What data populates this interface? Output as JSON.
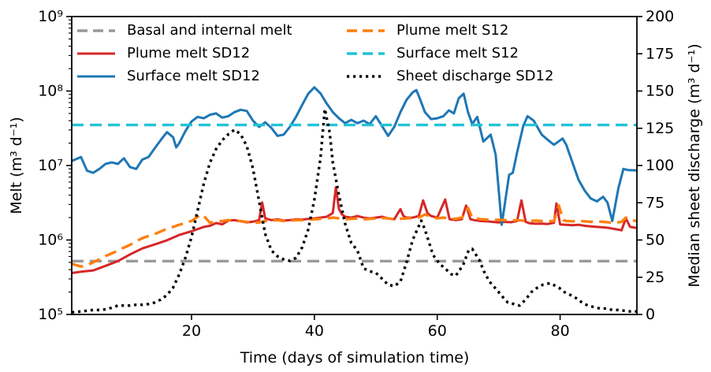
{
  "chart_data": {
    "type": "line",
    "title": "",
    "x_axis": {
      "label": "Time (days of simulation time)",
      "range": [
        0.5,
        92.5
      ],
      "ticks": [
        20,
        40,
        60,
        80
      ]
    },
    "left_axis": {
      "label": "Melt (m³ d⁻¹)",
      "scale": "log",
      "range": [
        100000.0,
        1000000000.0
      ],
      "ticks": [
        {
          "label": "10⁵",
          "value": 100000.0
        },
        {
          "label": "10⁶",
          "value": 1000000.0
        },
        {
          "label": "10⁷",
          "value": 10000000.0
        },
        {
          "label": "10⁸",
          "value": 100000000.0
        },
        {
          "label": "10⁹",
          "value": 1000000000.0
        }
      ]
    },
    "right_axis": {
      "label": "Median sheet discharge (m³ d⁻¹)",
      "scale": "linear",
      "range": [
        0,
        200
      ],
      "ticks": [
        0,
        25,
        50,
        75,
        100,
        125,
        150,
        175,
        200
      ]
    },
    "grid": false,
    "legend_position": "upper-inside-two-columns",
    "series": [
      {
        "key": "basal",
        "label": "Basal and internal melt",
        "color": "#999999",
        "style": "dashed",
        "axis": "left",
        "x": [
          0.5,
          92.5
        ],
        "y": [
          520000.0,
          520000.0
        ]
      },
      {
        "key": "plume_sd12",
        "label": "Plume melt SD12",
        "color": "#d62728",
        "style": "solid",
        "axis": "left",
        "x": [
          0.5,
          2,
          4,
          6,
          8,
          10,
          12,
          14,
          16,
          18,
          20,
          22,
          23,
          24,
          25,
          26,
          27,
          28,
          29,
          30,
          31,
          31.5,
          32,
          33,
          34,
          35,
          36,
          37,
          38,
          39,
          40,
          41,
          42,
          43,
          43.5,
          44,
          44.5,
          45,
          46,
          47,
          48,
          49,
          50,
          51,
          52,
          53,
          54,
          54.5,
          55,
          56,
          57,
          57.7,
          58.4,
          59,
          60,
          61.3,
          62,
          63,
          64,
          64.7,
          65.4,
          66,
          67,
          68,
          69,
          70,
          71,
          72,
          73,
          73.7,
          74.4,
          75,
          76,
          77,
          78,
          79,
          79.4,
          80,
          81,
          82,
          83,
          84,
          85,
          86,
          87,
          88,
          89,
          90,
          90.7,
          91.4,
          92.5
        ],
        "y": [
          360000.0,
          375000.0,
          390000.0,
          450000.0,
          520000.0,
          640000.0,
          770000.0,
          870000.0,
          990000.0,
          1170000.0,
          1310000.0,
          1500000.0,
          1550000.0,
          1690000.0,
          1620000.0,
          1820000.0,
          1850000.0,
          1780000.0,
          1720000.0,
          1760000.0,
          1850000.0,
          3200000.0,
          1950000.0,
          1850000.0,
          1900000.0,
          1820000.0,
          1850000.0,
          1900000.0,
          1880000.0,
          1920000.0,
          1950000.0,
          2000000.0,
          2050000.0,
          2300000.0,
          5100000.0,
          2600000.0,
          2200000.0,
          2050000.0,
          2000000.0,
          2100000.0,
          2000000.0,
          1950000.0,
          2000000.0,
          2050000.0,
          1950000.0,
          1900000.0,
          2600000.0,
          2100000.0,
          2000000.0,
          2000000.0,
          2100000.0,
          3400000.0,
          2300000.0,
          2100000.0,
          2000000.0,
          3500000.0,
          1900000.0,
          1850000.0,
          1900000.0,
          2900000.0,
          1900000.0,
          1850000.0,
          1800000.0,
          1780000.0,
          1750000.0,
          1720000.0,
          1750000.0,
          1730000.0,
          1800000.0,
          3400000.0,
          1750000.0,
          1680000.0,
          1650000.0,
          1660000.0,
          1640000.0,
          1700000.0,
          3100000.0,
          1620000.0,
          1600000.0,
          1580000.0,
          1600000.0,
          1550000.0,
          1520000.0,
          1500000.0,
          1480000.0,
          1450000.0,
          1400000.0,
          1350000.0,
          1950000.0,
          1500000.0,
          1450000.0
        ]
      },
      {
        "key": "surface_sd12",
        "label": "Surface melt SD12",
        "color": "#1f77b4",
        "style": "solid",
        "axis": "left",
        "x": [
          0.5,
          2,
          3,
          4,
          5,
          6,
          7,
          8,
          9,
          10,
          11,
          12,
          13,
          14,
          15,
          16,
          17,
          17.5,
          18,
          19,
          20,
          21,
          22,
          23,
          24,
          25,
          26,
          27,
          28,
          29,
          30,
          31,
          32,
          33,
          34,
          35,
          36,
          37,
          38,
          39,
          40,
          41,
          42,
          43,
          44,
          45,
          46,
          47,
          48,
          49,
          50,
          51,
          52,
          53,
          54,
          55,
          56,
          56.6,
          57,
          58,
          59,
          60,
          61,
          61.9,
          62.7,
          63.5,
          64.3,
          65,
          65.7,
          66.5,
          67.5,
          68.7,
          69.5,
          70.5,
          71.7,
          72.3,
          73,
          74,
          74.7,
          75.7,
          77,
          78,
          79,
          80.4,
          81,
          82,
          83,
          84,
          85,
          86,
          87,
          87.7,
          88.5,
          89.5,
          90.3,
          91,
          92.5
        ],
        "y": [
          11500000.0,
          13000000.0,
          8500000.0,
          8000000.0,
          9000000.0,
          10500000.0,
          11000000.0,
          10500000.0,
          12500000.0,
          9500000.0,
          9000000.0,
          12000000.0,
          13000000.0,
          17000000.0,
          22000000.0,
          28000000.0,
          24000000.0,
          17500000.0,
          20000000.0,
          29000000.0,
          39000000.0,
          45000000.0,
          43000000.0,
          48000000.0,
          50000000.0,
          44000000.0,
          46000000.0,
          52000000.0,
          56000000.0,
          54000000.0,
          40000000.0,
          33000000.0,
          38000000.0,
          32000000.0,
          25000000.0,
          26000000.0,
          33000000.0,
          45000000.0,
          65000000.0,
          92000000.0,
          112000000.0,
          93000000.0,
          68000000.0,
          52000000.0,
          43000000.0,
          37000000.0,
          41000000.0,
          37000000.0,
          40000000.0,
          36000000.0,
          46000000.0,
          34000000.0,
          25000000.0,
          33000000.0,
          52000000.0,
          76000000.0,
          96000000.0,
          103000000.0,
          86000000.0,
          52000000.0,
          42000000.0,
          43000000.0,
          46000000.0,
          55000000.0,
          50000000.0,
          80000000.0,
          92000000.0,
          52000000.0,
          36000000.0,
          45000000.0,
          21000000.0,
          26000000.0,
          14000000.0,
          1600000.0,
          7500000.0,
          8000000.0,
          15000000.0,
          34000000.0,
          46000000.0,
          40000000.0,
          26000000.0,
          22000000.0,
          19000000.0,
          23000000.0,
          19000000.0,
          11000000.0,
          6400000.0,
          4600000.0,
          3600000.0,
          3300000.0,
          3800000.0,
          3200000.0,
          1800000.0,
          5000000.0,
          9000000.0,
          8700000.0,
          8600000.0
        ]
      },
      {
        "key": "plume_s12",
        "label": "Plume melt S12",
        "color": "#ff7f0e",
        "style": "dashed",
        "axis": "left",
        "x": [
          0.5,
          2,
          3,
          4,
          5,
          6,
          7,
          8,
          9,
          10,
          11,
          12,
          13,
          14,
          15,
          16,
          17,
          18,
          19,
          20,
          21,
          21.5,
          22,
          23,
          24,
          25,
          26,
          27,
          28,
          29,
          30,
          31,
          32,
          33,
          34,
          35,
          36,
          37,
          38,
          39,
          40,
          41,
          42,
          43,
          44,
          45,
          46,
          47,
          48,
          49,
          50,
          51,
          52,
          53,
          54,
          55,
          56,
          57,
          58,
          59,
          60,
          61,
          62,
          63,
          64,
          65,
          65.7,
          66.5,
          67,
          68,
          69,
          70,
          71,
          72,
          73,
          74,
          75,
          76,
          77,
          78,
          79,
          79.8,
          80.5,
          81,
          82,
          83,
          84,
          85,
          86,
          87,
          88,
          89,
          90,
          90.7,
          91.5,
          92.5
        ],
        "y": [
          480000.0,
          440000.0,
          460000.0,
          500000.0,
          550000.0,
          610000.0,
          660000.0,
          720000.0,
          790000.0,
          860000.0,
          960000.0,
          1060000.0,
          1130000.0,
          1200000.0,
          1300000.0,
          1420000.0,
          1500000.0,
          1600000.0,
          1700000.0,
          1800000.0,
          2050000.0,
          2200000.0,
          2100000.0,
          1700000.0,
          1750000.0,
          1800000.0,
          1850000.0,
          1820000.0,
          1800000.0,
          1750000.0,
          1700000.0,
          1720000.0,
          1800000.0,
          1820000.0,
          1850000.0,
          1800000.0,
          1820000.0,
          1850000.0,
          1850000.0,
          1880000.0,
          1900000.0,
          1920000.0,
          1950000.0,
          2000000.0,
          1950000.0,
          1900000.0,
          1920000.0,
          1950000.0,
          1900000.0,
          1920000.0,
          1950000.0,
          1970000.0,
          1950000.0,
          1900000.0,
          1920000.0,
          1950000.0,
          1970000.0,
          2000000.0,
          2200000.0,
          2050000.0,
          1950000.0,
          2000000.0,
          1950000.0,
          1920000.0,
          2000000.0,
          2700000.0,
          2000000.0,
          1950000.0,
          1900000.0,
          1880000.0,
          1850000.0,
          1870000.0,
          1850000.0,
          1830000.0,
          1850000.0,
          1820000.0,
          1800000.0,
          1820000.0,
          1800000.0,
          1780000.0,
          1800000.0,
          2900000.0,
          1850000.0,
          1800000.0,
          1780000.0,
          1800000.0,
          1780000.0,
          1750000.0,
          1780000.0,
          1750000.0,
          1720000.0,
          1700000.0,
          1750000.0,
          2000000.0,
          1850000.0,
          1800000.0
        ]
      },
      {
        "key": "surface_s12",
        "label": "Surface melt S12",
        "color": "#22c3d6",
        "style": "dashed",
        "axis": "left",
        "x": [
          0.5,
          92.5
        ],
        "y": [
          35000000.0,
          35000000.0
        ]
      },
      {
        "key": "sheet_sd12",
        "label": "Sheet discharge SD12",
        "color": "#000000",
        "style": "dotted",
        "axis": "right",
        "x": [
          0.5,
          2,
          3,
          4,
          5,
          6,
          7,
          8,
          9,
          10,
          11,
          12,
          13,
          14,
          15,
          16,
          17,
          18,
          19,
          20,
          21,
          22,
          23,
          24,
          25,
          26,
          27,
          28,
          29,
          30,
          31,
          32,
          33,
          34,
          35,
          36,
          37,
          38,
          39,
          40,
          41,
          41.7,
          42.5,
          43,
          44,
          45,
          46,
          47,
          48,
          49,
          50,
          51,
          52,
          53,
          54,
          55,
          56,
          57.4,
          58,
          59.3,
          60.4,
          61.5,
          62.3,
          63,
          64.2,
          65.1,
          65.7,
          66.8,
          67.6,
          68.5,
          69.6,
          70.6,
          71.5,
          72.5,
          73.4,
          74.4,
          75.3,
          76.3,
          77.2,
          78.4,
          79.8,
          80.7,
          81.7,
          82.6,
          83.6,
          84.5,
          85.5,
          86.5,
          87.5,
          88.5,
          89.5,
          90.5,
          91.5,
          92.5
        ],
        "y": [
          1.5,
          2,
          2.5,
          3,
          3,
          3.5,
          4.5,
          6,
          6,
          6,
          6.5,
          6.5,
          7,
          8,
          10,
          13,
          18,
          27,
          38,
          52,
          70,
          88,
          102,
          111,
          117,
          121,
          124,
          121,
          113,
          98,
          76,
          54,
          43,
          39,
          37,
          36,
          38,
          45,
          57,
          77,
          105,
          138,
          122,
          102,
          80,
          61,
          48,
          43,
          31,
          29,
          28,
          24,
          20,
          19,
          22,
          35,
          50,
          63,
          57,
          40,
          34,
          30,
          27,
          26,
          33,
          43,
          44,
          37,
          29,
          22,
          17,
          12,
          8,
          7,
          6,
          10,
          15,
          18,
          20,
          21,
          18,
          15,
          13,
          11,
          8,
          6,
          5,
          4,
          4,
          3,
          3,
          2.5,
          2,
          2
        ]
      }
    ],
    "legend_columns": [
      [
        "basal",
        "plume_sd12",
        "surface_sd12"
      ],
      [
        "plume_s12",
        "surface_s12",
        "sheet_sd12"
      ]
    ]
  }
}
